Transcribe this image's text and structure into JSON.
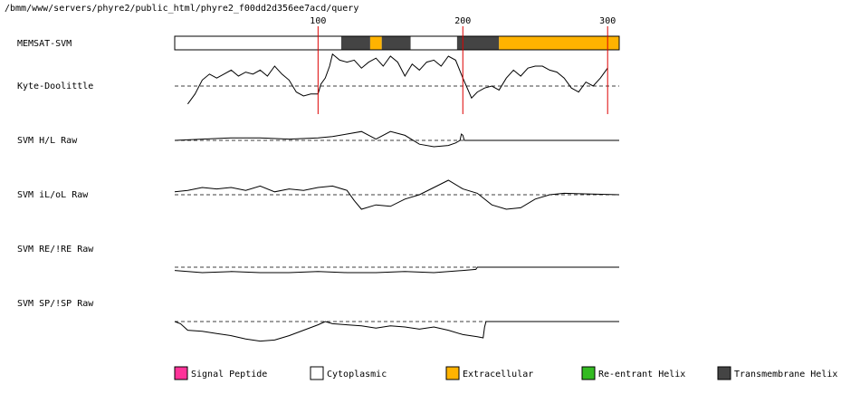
{
  "title": "/bmm/www/servers/phyre2/public_html/phyre2_f00dd2d356ee7acd/query",
  "chart_data": {
    "type": "line",
    "sequence_length": 308,
    "x_ticks": [
      100,
      200,
      300
    ],
    "legend": [
      {
        "label": "Signal Peptide",
        "color": "#ff3399"
      },
      {
        "label": "Cytoplasmic",
        "color": "#ffffff"
      },
      {
        "label": "Extracellular",
        "color": "#ffb300"
      },
      {
        "label": "Re-entrant Helix",
        "color": "#33bb22"
      },
      {
        "label": "Transmembrane Helix",
        "color": "#444444"
      }
    ],
    "memsat": {
      "label": "MEMSAT-SVM",
      "segments": [
        {
          "start": 1,
          "end": 116,
          "type": "Cytoplasmic"
        },
        {
          "start": 116,
          "end": 136,
          "type": "Transmembrane Helix"
        },
        {
          "start": 136,
          "end": 144,
          "type": "Extracellular"
        },
        {
          "start": 144,
          "end": 164,
          "type": "Transmembrane Helix"
        },
        {
          "start": 164,
          "end": 196,
          "type": "Cytoplasmic"
        },
        {
          "start": 196,
          "end": 225,
          "type": "Transmembrane Helix"
        },
        {
          "start": 225,
          "end": 308,
          "type": "Extracellular"
        }
      ]
    },
    "tracks": [
      {
        "label": "Kyte-Doolittle",
        "x": [
          10,
          15,
          20,
          25,
          30,
          35,
          40,
          45,
          50,
          55,
          60,
          65,
          70,
          75,
          80,
          85,
          90,
          95,
          100,
          102,
          105,
          108,
          110,
          115,
          120,
          125,
          130,
          135,
          140,
          145,
          150,
          155,
          160,
          165,
          170,
          175,
          180,
          185,
          190,
          195,
          200,
          203,
          206,
          210,
          215,
          220,
          225,
          230,
          235,
          240,
          245,
          250,
          255,
          260,
          265,
          270,
          275,
          280,
          285,
          290,
          295,
          300
        ],
        "y": [
          -0.9,
          -0.4,
          0.3,
          0.6,
          0.4,
          0.6,
          0.8,
          0.5,
          0.7,
          0.6,
          0.8,
          0.5,
          1.0,
          0.6,
          0.3,
          -0.3,
          -0.5,
          -0.4,
          -0.4,
          0.1,
          0.4,
          1.0,
          1.6,
          1.3,
          1.2,
          1.3,
          0.9,
          1.2,
          1.4,
          1.0,
          1.5,
          1.2,
          0.5,
          1.1,
          0.8,
          1.2,
          1.3,
          1.0,
          1.5,
          1.3,
          0.4,
          -0.1,
          -0.6,
          -0.3,
          -0.1,
          0.0,
          -0.2,
          0.4,
          0.8,
          0.5,
          0.9,
          1.0,
          1.0,
          0.8,
          0.7,
          0.4,
          -0.1,
          -0.3,
          0.2,
          0.0,
          0.4,
          0.9
        ]
      },
      {
        "label": "SVM H/L Raw",
        "x": [
          1,
          20,
          40,
          60,
          80,
          100,
          110,
          120,
          130,
          140,
          150,
          160,
          170,
          180,
          190,
          195,
          198,
          199,
          200,
          201,
          308
        ],
        "y": [
          0.0,
          0.1,
          0.2,
          0.2,
          0.1,
          0.2,
          0.3,
          0.5,
          0.7,
          0.1,
          0.7,
          0.4,
          -0.3,
          -0.5,
          -0.4,
          -0.2,
          0.0,
          0.5,
          0.4,
          0.0,
          0.0
        ]
      },
      {
        "label": "SVM iL/oL Raw",
        "x": [
          1,
          10,
          20,
          30,
          40,
          50,
          60,
          70,
          80,
          90,
          100,
          110,
          120,
          125,
          130,
          140,
          150,
          160,
          170,
          180,
          190,
          200,
          210,
          220,
          230,
          240,
          250,
          260,
          270,
          308
        ],
        "y": [
          0.2,
          0.3,
          0.5,
          0.4,
          0.5,
          0.3,
          0.6,
          0.2,
          0.4,
          0.3,
          0.5,
          0.6,
          0.3,
          -0.4,
          -1.0,
          -0.7,
          -0.8,
          -0.3,
          0.0,
          0.5,
          1.0,
          0.4,
          0.1,
          -0.7,
          -1.0,
          -0.9,
          -0.3,
          0.0,
          0.1,
          0.0
        ]
      },
      {
        "label": "SVM RE/!RE Raw",
        "x": [
          1,
          20,
          40,
          60,
          80,
          100,
          120,
          140,
          160,
          180,
          200,
          209,
          210,
          308
        ],
        "y": [
          -0.3,
          -0.5,
          -0.4,
          -0.5,
          -0.5,
          -0.4,
          -0.5,
          -0.5,
          -0.4,
          -0.5,
          -0.3,
          -0.2,
          0.0,
          0.0
        ]
      },
      {
        "label": "SVM SP/!SP Raw",
        "x": [
          1,
          5,
          10,
          20,
          30,
          40,
          50,
          60,
          70,
          80,
          90,
          100,
          105,
          110,
          120,
          130,
          140,
          150,
          160,
          170,
          180,
          190,
          200,
          210,
          214,
          215,
          216,
          308
        ],
        "y": [
          0.0,
          -0.2,
          -0.8,
          -0.9,
          -1.1,
          -1.3,
          -1.6,
          -1.8,
          -1.7,
          -1.3,
          -0.8,
          -0.3,
          0.0,
          -0.2,
          -0.3,
          -0.4,
          -0.6,
          -0.4,
          -0.5,
          -0.7,
          -0.5,
          -0.8,
          -1.2,
          -1.4,
          -1.5,
          -0.5,
          0.0,
          0.0
        ]
      }
    ]
  }
}
